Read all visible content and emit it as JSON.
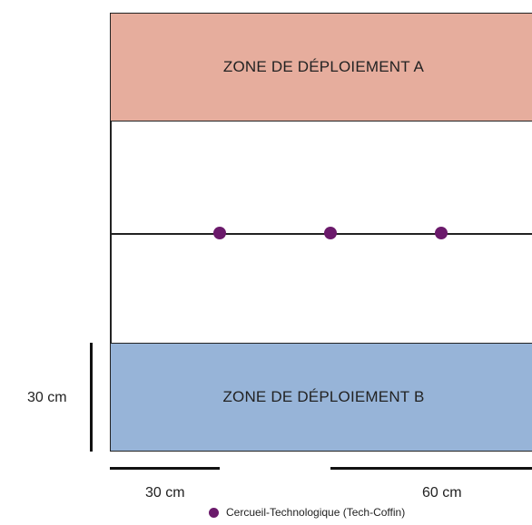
{
  "zones": {
    "a_label": "ZONE DE DÉPLOIEMENT A",
    "b_label": "ZONE DE DÉPLOIEMENT B"
  },
  "scale": {
    "vertical_label": "30 cm",
    "horizontal_short_label": "30 cm",
    "horizontal_long_label": "60 cm"
  },
  "legend": {
    "marker_label": "Cercueil-Technologique (Tech-Coffin)"
  },
  "colors": {
    "zone_a": "#e6ad9d",
    "zone_b": "#97b4d8",
    "coffin": "#6b1a6b"
  }
}
